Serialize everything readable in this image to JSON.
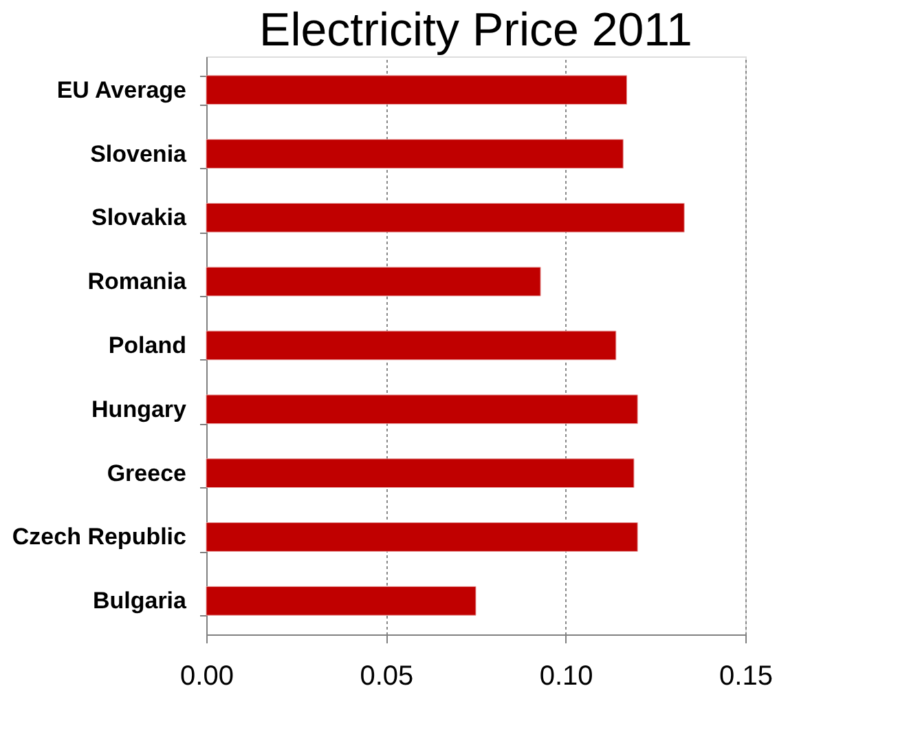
{
  "chart_data": {
    "type": "bar",
    "orientation": "horizontal",
    "title": "Electricity Price 2011",
    "categories": [
      "EU Average",
      "Slovenia",
      "Slovakia",
      "Romania",
      "Poland",
      "Hungary",
      "Greece",
      "Czech Republic",
      "Bulgaria"
    ],
    "values": [
      0.117,
      0.116,
      0.133,
      0.093,
      0.114,
      0.12,
      0.119,
      0.12,
      0.075
    ],
    "color": "#c00000",
    "xlim": [
      0,
      0.15
    ],
    "xticks": [
      {
        "value": 0,
        "label": "0.00"
      },
      {
        "value": 0.05,
        "label": "0.05"
      },
      {
        "value": 0.1,
        "label": "0.10"
      },
      {
        "value": 0.15,
        "label": "0.15"
      }
    ],
    "grid": "x"
  }
}
